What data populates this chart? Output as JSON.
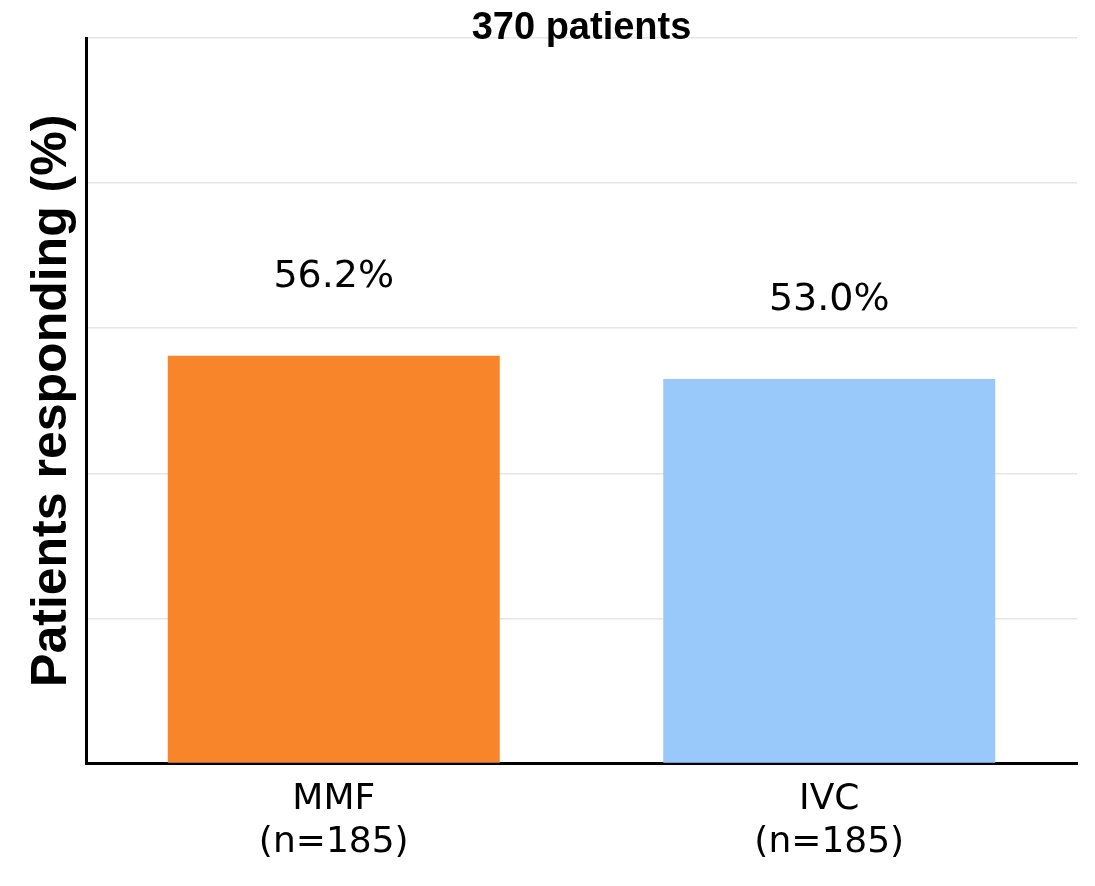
{
  "chart_data": {
    "type": "bar",
    "title": "370 patients",
    "ylabel": "Patients responding (%)",
    "categories": [
      "MMF\n(n=185)",
      "IVC\n(n=185)"
    ],
    "values": [
      56.2,
      53.0
    ],
    "colors": [
      "#f9852a",
      "#99c8fb"
    ],
    "ylim": [
      0,
      100
    ],
    "yticks": [
      0,
      20,
      40,
      60,
      80,
      100
    ],
    "grid": "y",
    "tick_labels": "x",
    "value_labels": [
      "56.2%",
      "53.0%"
    ]
  }
}
